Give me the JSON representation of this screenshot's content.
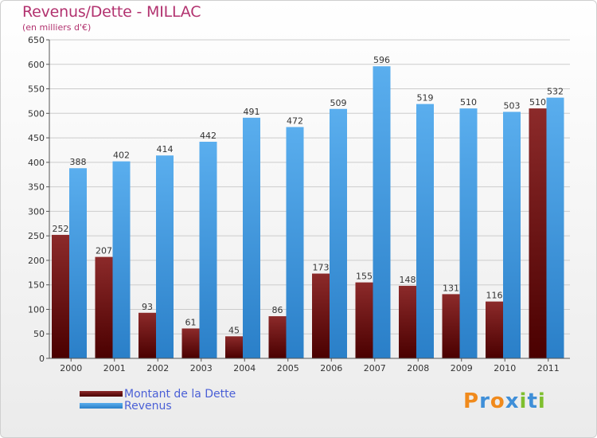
{
  "header": {
    "title": "Revenus/Dette - MILLAC",
    "subtitle": "(en milliers d'€)"
  },
  "legend": {
    "items": [
      {
        "label": "Montant de la Dette",
        "color": "#7a1616"
      },
      {
        "label": "Revenus",
        "color": "#4fa3e6"
      }
    ]
  },
  "brand": {
    "letters": [
      "P",
      "r",
      "o",
      "x",
      "i",
      "t",
      "i"
    ],
    "colors": [
      "#f08a1c",
      "#3f8fd8",
      "#f08a1c",
      "#3f8fd8",
      "#7fbf2f",
      "#3f8fd8",
      "#7fbf2f"
    ]
  },
  "chart_data": {
    "type": "bar",
    "categories": [
      "2000",
      "2001",
      "2002",
      "2003",
      "2004",
      "2005",
      "2006",
      "2007",
      "2008",
      "2009",
      "2010",
      "2011"
    ],
    "series": [
      {
        "name": "Montant de la Dette",
        "values": [
          252,
          207,
          93,
          61,
          45,
          86,
          173,
          155,
          148,
          131,
          116,
          510
        ],
        "color": "#7a1616"
      },
      {
        "name": "Revenus",
        "values": [
          388,
          402,
          414,
          442,
          491,
          472,
          509,
          596,
          519,
          510,
          503,
          532
        ],
        "color": "#4fa3e6"
      }
    ],
    "ylim": [
      0,
      650
    ],
    "yticks": [
      "0",
      "50",
      "100",
      "150",
      "200",
      "250",
      "300",
      "350",
      "400",
      "450",
      "500",
      "550",
      "600",
      "650"
    ],
    "grid": true
  }
}
